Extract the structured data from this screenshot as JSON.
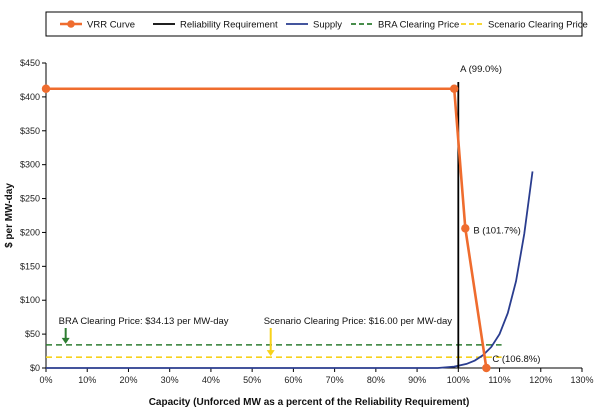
{
  "chart_data": {
    "type": "line",
    "xlabel": "Capacity (Unforced MW as a percent of the Reliability Requirement)",
    "ylabel": "$ per MW-day",
    "xlim": [
      0,
      130
    ],
    "ylim": [
      0,
      450
    ],
    "x_ticks": [
      "0%",
      "10%",
      "20%",
      "30%",
      "40%",
      "50%",
      "60%",
      "70%",
      "80%",
      "90%",
      "100%",
      "110%",
      "120%",
      "130%"
    ],
    "y_ticks": [
      "$0",
      "$50",
      "$100",
      "$150",
      "$200",
      "$250",
      "$300",
      "$350",
      "$400",
      "$450"
    ],
    "grid": false,
    "legend_position": "top",
    "series": [
      {
        "name": "VRR Curve",
        "color": "#ef6c2e",
        "style": "solid-markers",
        "points": [
          [
            0,
            412
          ],
          [
            99.0,
            412
          ],
          [
            101.7,
            206
          ],
          [
            106.8,
            0
          ]
        ]
      },
      {
        "name": "Reliability Requirement",
        "color": "#000000",
        "style": "vertical-line",
        "x": 100
      },
      {
        "name": "Supply",
        "color": "#2a3d8f",
        "style": "solid",
        "points": [
          [
            0,
            0
          ],
          [
            95,
            0
          ],
          [
            99,
            2
          ],
          [
            102,
            6
          ],
          [
            104,
            11
          ],
          [
            106,
            19
          ],
          [
            108,
            31
          ],
          [
            110,
            50
          ],
          [
            112,
            81
          ],
          [
            114,
            128
          ],
          [
            116,
            198
          ],
          [
            118,
            290
          ]
        ]
      },
      {
        "name": "BRA Clearing Price",
        "color": "#2e7d32",
        "style": "dashed",
        "y": 34.13
      },
      {
        "name": "Scenario Clearing Price",
        "color": "#f7d21b",
        "style": "dashed",
        "y": 16.0
      }
    ],
    "point_labels": [
      {
        "text": "A (99.0%)",
        "x": 99.0,
        "y": 412
      },
      {
        "text": "B (101.7%)",
        "x": 101.7,
        "y": 206
      },
      {
        "text": "C (106.8%)",
        "x": 106.8,
        "y": 0
      }
    ],
    "annotations": [
      {
        "text": "BRA Clearing Price: $34.13 per MW-day",
        "x": 5.5,
        "y": 34.13,
        "color": "#2e7d32"
      },
      {
        "text": "Scenario Clearing Price: $16.00 per MW-day",
        "x": 54.5,
        "y": 16.0,
        "color": "#f7d21b"
      }
    ]
  }
}
